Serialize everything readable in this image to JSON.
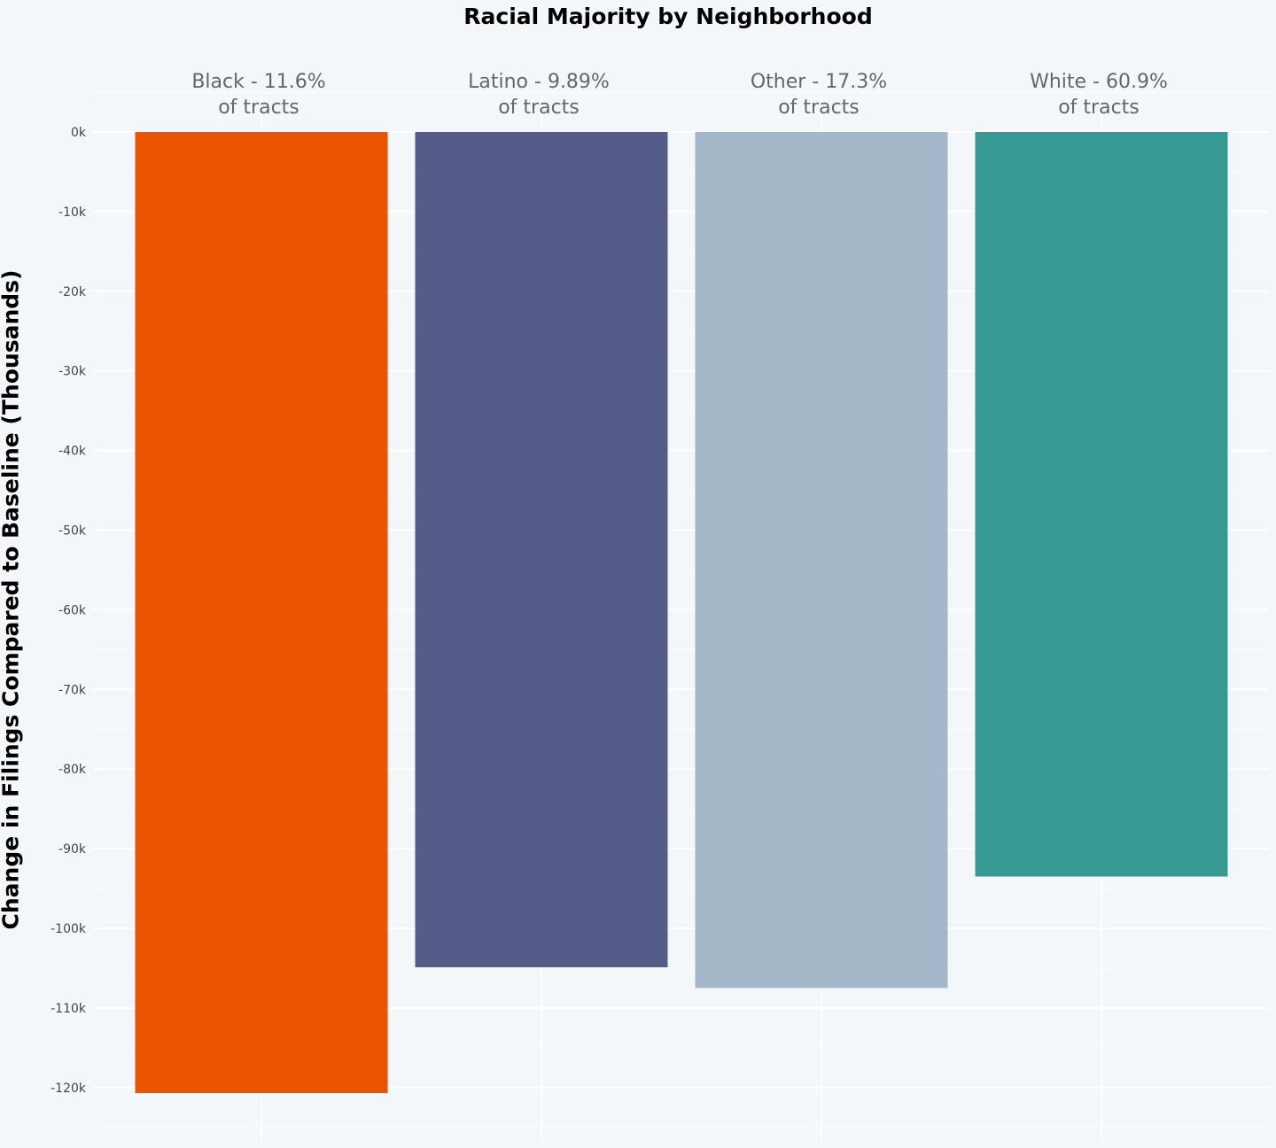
{
  "chart_data": {
    "type": "bar",
    "title": "Racial Majority by Neighborhood",
    "ylabel": "Change in Filings Compared to Baseline (Thousands)",
    "xlabel": "",
    "categories": [
      [
        "Black - 11.6%",
        "of tracts"
      ],
      [
        "Latino - 9.89%",
        "of tracts"
      ],
      [
        "Other - 17.3%",
        "of tracts"
      ],
      [
        "White - 60.9%",
        "of tracts"
      ]
    ],
    "values": [
      -120.7,
      -104.9,
      -107.5,
      -93.5
    ],
    "colors": [
      "#eb5500",
      "#555c8a",
      "#a5b8ca",
      "#369a92"
    ],
    "yticks": [
      0,
      -10,
      -20,
      -30,
      -40,
      -50,
      -60,
      -70,
      -80,
      -90,
      -100,
      -110,
      -120
    ],
    "ytick_labels": [
      "0k",
      "-10k",
      "-20k",
      "-30k",
      "-40k",
      "-50k",
      "-60k",
      "-70k",
      "-80k",
      "-90k",
      "-100k",
      "-110k",
      "-120k"
    ],
    "ylim": [
      -126.7,
      5
    ],
    "grid": true,
    "background": "#f4f7fa",
    "category_labels_position": "top"
  }
}
